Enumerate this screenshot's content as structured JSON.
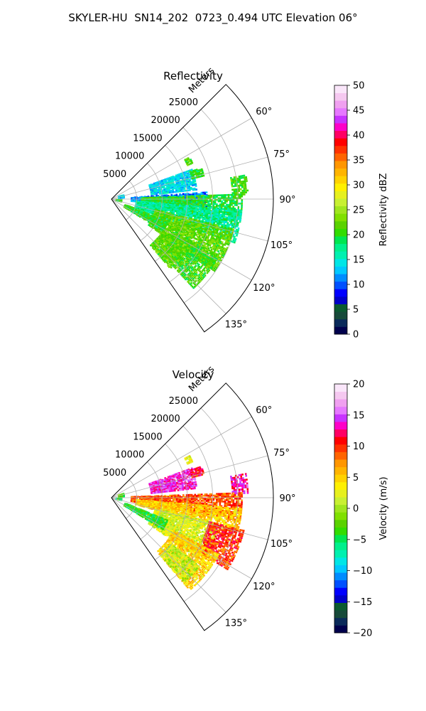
{
  "figure": {
    "suptitle": "SKYLER-HU  SN14_202  0723_0.494 UTC Elevation 06°"
  },
  "chart_data": [
    {
      "type": "heatmap",
      "projection": "polar-sector",
      "title": "Reflectivity",
      "radial_axis_label": "Meters",
      "radial_ticks": [
        5000,
        10000,
        15000,
        20000,
        25000
      ],
      "radial_tick_labels": [
        "5000",
        "10000",
        "15000",
        "20000",
        "25000"
      ],
      "rlim": [
        0,
        32000
      ],
      "azimuth_ticks": [
        60,
        75,
        90,
        105,
        120,
        135
      ],
      "azimuth_tick_labels": [
        "60°",
        "75°",
        "90°",
        "105°",
        "120°",
        "135°"
      ],
      "azimuth_range_deg": [
        45,
        145
      ],
      "grid": true,
      "colorbar": {
        "label": "Reflectivity dBZ",
        "range": [
          0,
          50
        ],
        "ticks": [
          0,
          5,
          10,
          15,
          20,
          25,
          30,
          35,
          40,
          45,
          50
        ],
        "tick_labels": [
          "0",
          "5",
          "10",
          "15",
          "20",
          "25",
          "30",
          "35",
          "40",
          "45",
          "50"
        ],
        "colors": [
          "#00004c",
          "#0a2a5a",
          "#174a3a",
          "#0b5a30",
          "#0000c8",
          "#0000ff",
          "#0050ff",
          "#008cff",
          "#00c8ff",
          "#00e6e6",
          "#00f0b0",
          "#00f08c",
          "#00e650",
          "#32dc00",
          "#5ad200",
          "#80e000",
          "#a0e61e",
          "#c8f032",
          "#e6f01e",
          "#fff000",
          "#ffd200",
          "#ffb400",
          "#ff9600",
          "#ff6400",
          "#ff3200",
          "#ff0000",
          "#ff0064",
          "#ff00c8",
          "#c832ff",
          "#e678ff",
          "#f0a0f0",
          "#f5c8f0",
          "#fae6fa"
        ]
      },
      "echo_regions": [
        {
          "az": [
            62,
            66
          ],
          "r": [
            16500,
            17500
          ],
          "value": 21
        },
        {
          "az": [
            70,
            84
          ],
          "r": [
            8000,
            17000
          ],
          "value": 14
        },
        {
          "az": [
            71,
            76
          ],
          "r": [
            16500,
            19000
          ],
          "value": 20
        },
        {
          "az": [
            80,
            88
          ],
          "r": [
            24000,
            27000
          ],
          "value": 21
        },
        {
          "az": [
            86,
            96
          ],
          "r": [
            4000,
            19000
          ],
          "value": 11
        },
        {
          "az": [
            88,
            102
          ],
          "r": [
            6000,
            26000
          ],
          "value": 20
        },
        {
          "az": [
            95,
            110
          ],
          "r": [
            5000,
            26000
          ],
          "value": 17
        },
        {
          "az": [
            104,
            125
          ],
          "r": [
            9000,
            25000
          ],
          "value": 22
        },
        {
          "az": [
            112,
            122
          ],
          "r": [
            3000,
            12000
          ],
          "value": 20
        },
        {
          "az": [
            118,
            138
          ],
          "r": [
            14000,
            24000
          ],
          "value": 21
        },
        {
          "az": [
            122,
            140
          ],
          "r": [
            12000,
            18000
          ],
          "value": 22
        },
        {
          "az": [
            72,
            84
          ],
          "r": [
            1500,
            2500
          ],
          "value": 14
        },
        {
          "az": [
            96,
            104
          ],
          "r": [
            1000,
            2000
          ],
          "value": 21
        }
      ]
    },
    {
      "type": "heatmap",
      "projection": "polar-sector",
      "title": "Velocity",
      "radial_axis_label": "Meters",
      "radial_ticks": [
        5000,
        10000,
        15000,
        20000,
        25000
      ],
      "radial_tick_labels": [
        "5000",
        "10000",
        "15000",
        "20000",
        "25000"
      ],
      "rlim": [
        0,
        32000
      ],
      "azimuth_ticks": [
        60,
        75,
        90,
        105,
        120,
        135
      ],
      "azimuth_tick_labels": [
        "60°",
        "75°",
        "90°",
        "105°",
        "120°",
        "135°"
      ],
      "azimuth_range_deg": [
        45,
        145
      ],
      "grid": true,
      "colorbar": {
        "label": "Velocity (m/s)",
        "range": [
          -20,
          20
        ],
        "ticks": [
          -20,
          -15,
          -10,
          -5,
          0,
          5,
          10,
          15,
          20
        ],
        "tick_labels": [
          "−20",
          "−15",
          "−10",
          "−5",
          "0",
          "5",
          "10",
          "15",
          "20"
        ],
        "colors": [
          "#00004c",
          "#0a2a5a",
          "#174a3a",
          "#0b5a30",
          "#0000c8",
          "#0000ff",
          "#0050ff",
          "#008cff",
          "#00c8ff",
          "#00e6e6",
          "#00f0b0",
          "#00f08c",
          "#00e650",
          "#32dc00",
          "#5ad200",
          "#80e000",
          "#a0e61e",
          "#c8f032",
          "#e6f01e",
          "#fff000",
          "#ffd200",
          "#ffb400",
          "#ff9600",
          "#ff6400",
          "#ff3200",
          "#ff0000",
          "#ff0064",
          "#ff00c8",
          "#c832ff",
          "#e678ff",
          "#f0a0f0",
          "#f5c8f0",
          "#fae6fa"
        ]
      },
      "echo_regions": [
        {
          "az": [
            62,
            66
          ],
          "r": [
            16500,
            17500
          ],
          "value": 3
        },
        {
          "az": [
            70,
            84
          ],
          "r": [
            8000,
            17000
          ],
          "value": 14
        },
        {
          "az": [
            71,
            76
          ],
          "r": [
            16500,
            19000
          ],
          "value": 11
        },
        {
          "az": [
            80,
            88
          ],
          "r": [
            24000,
            27000
          ],
          "value": 13
        },
        {
          "az": [
            88,
            100
          ],
          "r": [
            4000,
            26000
          ],
          "value": 9
        },
        {
          "az": [
            95,
            106
          ],
          "r": [
            5000,
            26000
          ],
          "value": 5
        },
        {
          "az": [
            104,
            125
          ],
          "r": [
            9000,
            22000
          ],
          "value": 2
        },
        {
          "az": [
            104,
            122
          ],
          "r": [
            20000,
            27000
          ],
          "value": 10
        },
        {
          "az": [
            112,
            122
          ],
          "r": [
            3000,
            12000
          ],
          "value": -4
        },
        {
          "az": [
            118,
            140
          ],
          "r": [
            14000,
            24000
          ],
          "value": 5
        },
        {
          "az": [
            128,
            140
          ],
          "r": [
            15000,
            22000
          ],
          "value": 1
        },
        {
          "az": [
            72,
            84
          ],
          "r": [
            1500,
            2500
          ],
          "value": -2
        },
        {
          "az": [
            96,
            104
          ],
          "r": [
            1000,
            2000
          ],
          "value": -5
        }
      ]
    }
  ]
}
